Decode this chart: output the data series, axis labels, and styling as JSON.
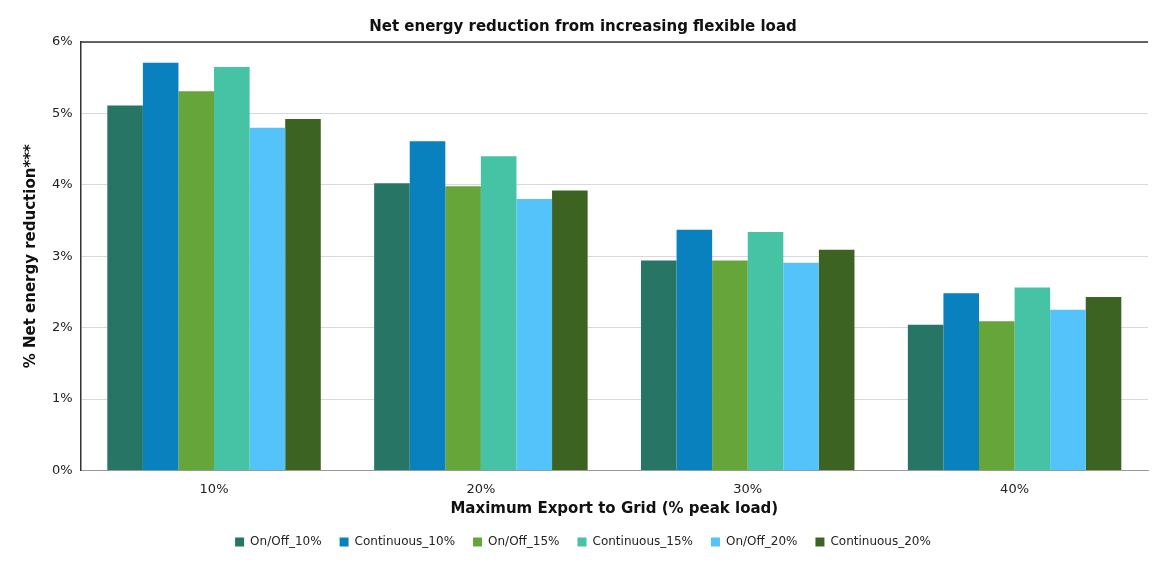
{
  "chart_data": {
    "type": "bar",
    "title": "Net energy reduction from increasing flexible load",
    "xlabel": "Maximum Export to Grid (% peak load)",
    "ylabel": "% Net energy reduction***",
    "categories": [
      "10%",
      "20%",
      "30%",
      "40%"
    ],
    "series": [
      {
        "name": "On/Off_10%",
        "color": "#267565",
        "values": [
          5.11,
          4.02,
          2.94,
          2.04
        ]
      },
      {
        "name": "Continuous_10%",
        "color": "#0981bf",
        "values": [
          5.71,
          4.61,
          3.37,
          2.48
        ]
      },
      {
        "name": "On/Off_15%",
        "color": "#65a539",
        "values": [
          5.31,
          3.98,
          2.94,
          2.09
        ]
      },
      {
        "name": "Continuous_15%",
        "color": "#46c2a4",
        "values": [
          5.65,
          4.4,
          3.34,
          2.56
        ]
      },
      {
        "name": "On/Off_20%",
        "color": "#53c3f9",
        "values": [
          4.8,
          3.8,
          2.91,
          2.25
        ]
      },
      {
        "name": "Continuous_20%",
        "color": "#3c6322",
        "values": [
          4.92,
          3.92,
          3.09,
          2.43
        ]
      }
    ],
    "ylim": [
      0,
      6
    ],
    "yticks": [
      {
        "value": 0,
        "label": "0%"
      },
      {
        "value": 1,
        "label": "1%"
      },
      {
        "value": 2,
        "label": "2%"
      },
      {
        "value": 3,
        "label": "3%"
      },
      {
        "value": 4,
        "label": "4%"
      },
      {
        "value": 5,
        "label": "5%"
      },
      {
        "value": 6,
        "label": "6%"
      }
    ],
    "grid": "y",
    "legend": "bottom"
  }
}
